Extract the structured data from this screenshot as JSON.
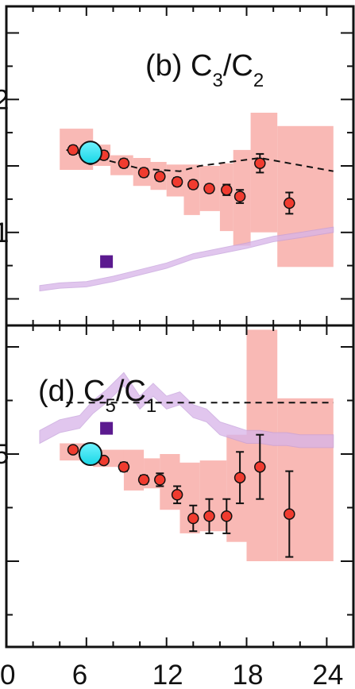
{
  "chart_data": [
    {
      "panel": "(b) C3/C2",
      "type": "scatter",
      "title": {
        "prefix": "(b) C",
        "sub1": "3",
        "slash": "/C",
        "sub2": "2"
      },
      "xlim": [
        0,
        26
      ],
      "ylim": [
        0.3,
        2.7
      ],
      "ytick_labels_visible": [
        {
          "value": 2,
          "label": "2"
        },
        {
          "value": 1,
          "label": "1"
        }
      ],
      "grid": false,
      "series": [
        {
          "kind": "red_points_with_errors",
          "x": [
            5,
            6.3,
            7.3,
            8.8,
            10.3,
            11.5,
            12.8,
            14.0,
            15.2,
            16.5,
            17.5,
            19.0,
            21.2
          ],
          "y": [
            1.62,
            1.55,
            1.58,
            1.52,
            1.45,
            1.42,
            1.38,
            1.36,
            1.33,
            1.32,
            1.27,
            1.52,
            1.22
          ],
          "yerr": [
            0.03,
            0.03,
            0.03,
            0.03,
            0.03,
            0.03,
            0.03,
            0.03,
            0.03,
            0.04,
            0.05,
            0.07,
            0.08
          ]
        },
        {
          "kind": "cyan_circle",
          "x": 6.3,
          "y": 1.6
        },
        {
          "kind": "purple_square",
          "x": 7.5,
          "y": 0.78
        },
        {
          "kind": "dashed_line",
          "x": [
            4.5,
            10,
            13,
            14.5,
            19,
            24.5
          ],
          "y": [
            1.62,
            1.48,
            1.46,
            1.5,
            1.56,
            1.46
          ]
        },
        {
          "kind": "purple_band",
          "x": [
            2.5,
            4,
            6,
            8,
            10,
            12,
            14,
            16,
            18,
            20,
            22,
            24.5
          ],
          "y": [
            0.58,
            0.6,
            0.61,
            0.65,
            0.7,
            0.75,
            0.82,
            0.86,
            0.9,
            0.95,
            0.98,
            1.02
          ],
          "half_width": 0.02
        }
      ],
      "red_bands": [
        {
          "x0": 4.0,
          "x1": 6.5,
          "y0": 1.47,
          "y1": 1.78
        },
        {
          "x0": 6.5,
          "x1": 7.8,
          "y0": 1.5,
          "y1": 1.66
        },
        {
          "x0": 7.8,
          "x1": 9.5,
          "y0": 1.43,
          "y1": 1.58
        },
        {
          "x0": 9.5,
          "x1": 10.8,
          "y0": 1.35,
          "y1": 1.56
        },
        {
          "x0": 10.8,
          "x1": 12.0,
          "y0": 1.32,
          "y1": 1.53
        },
        {
          "x0": 12.0,
          "x1": 13.3,
          "y0": 1.27,
          "y1": 1.51
        },
        {
          "x0": 13.3,
          "x1": 14.5,
          "y0": 1.13,
          "y1": 1.51
        },
        {
          "x0": 14.5,
          "x1": 16.0,
          "y0": 1.16,
          "y1": 1.5
        },
        {
          "x0": 16.0,
          "x1": 17.0,
          "y0": 1.01,
          "y1": 1.52
        },
        {
          "x0": 17.0,
          "x1": 18.3,
          "y0": 0.9,
          "y1": 1.62
        },
        {
          "x0": 18.3,
          "x1": 20.3,
          "y0": 1.0,
          "y1": 1.9
        },
        {
          "x0": 20.3,
          "x1": 24.5,
          "y0": 0.74,
          "y1": 1.8
        }
      ]
    },
    {
      "panel": "(d) C5/C1",
      "type": "scatter",
      "title": {
        "prefix": "(d) C",
        "sub1": "5",
        "slash": "/C",
        "sub2": "1"
      },
      "xlim": [
        0,
        26
      ],
      "ylim": [
        -0.4,
        1.1
      ],
      "ytick_labels_visible": [
        {
          "value": 0.5,
          "label": "5"
        }
      ],
      "xtick_labels": [
        "0",
        "6",
        "12",
        "18",
        "24"
      ],
      "grid": false,
      "series": [
        {
          "kind": "red_points_with_errors",
          "x": [
            5,
            6.3,
            7.3,
            8.8,
            10.3,
            11.5,
            12.8,
            14.0,
            15.2,
            16.5,
            17.5,
            19.0,
            21.2
          ],
          "y": [
            0.52,
            0.5,
            0.47,
            0.44,
            0.38,
            0.38,
            0.31,
            0.2,
            0.21,
            0.21,
            0.39,
            0.44,
            0.22
          ],
          "yerr": [
            0.01,
            0.01,
            0.01,
            0.02,
            0.02,
            0.03,
            0.04,
            0.06,
            0.08,
            0.08,
            0.12,
            0.15,
            0.2
          ]
        },
        {
          "kind": "cyan_circle",
          "x": 6.3,
          "y": 0.5
        },
        {
          "kind": "purple_square",
          "x": 7.5,
          "y": 0.62
        },
        {
          "kind": "dashed_line",
          "x": [
            4.5,
            24.5
          ],
          "y": [
            0.74,
            0.74
          ]
        },
        {
          "kind": "purple_band",
          "x": [
            2.5,
            4,
            5.5,
            6.5,
            7.5,
            8.8,
            10,
            11,
            12,
            13,
            14,
            15,
            16,
            17,
            18,
            19,
            20,
            21,
            22,
            24.5
          ],
          "y": [
            0.58,
            0.63,
            0.65,
            0.72,
            0.77,
            0.85,
            0.74,
            0.8,
            0.74,
            0.76,
            0.7,
            0.68,
            0.62,
            0.6,
            0.58,
            0.58,
            0.57,
            0.57,
            0.56,
            0.56
          ],
          "half_width": 0.03
        }
      ],
      "red_bands": [
        {
          "x0": 4.0,
          "x1": 6.5,
          "y0": 0.47,
          "y1": 0.55
        },
        {
          "x0": 6.5,
          "x1": 8.8,
          "y0": 0.44,
          "y1": 0.52
        },
        {
          "x0": 8.8,
          "x1": 10.3,
          "y0": 0.33,
          "y1": 0.52
        },
        {
          "x0": 10.3,
          "x1": 11.5,
          "y0": 0.34,
          "y1": 0.48
        },
        {
          "x0": 11.5,
          "x1": 13.0,
          "y0": 0.24,
          "y1": 0.5
        },
        {
          "x0": 13.0,
          "x1": 14.5,
          "y0": 0.13,
          "y1": 0.46
        },
        {
          "x0": 14.5,
          "x1": 16.5,
          "y0": 0.14,
          "y1": 0.47
        },
        {
          "x0": 16.5,
          "x1": 18.0,
          "y0": 0.09,
          "y1": 0.59
        },
        {
          "x0": 18.0,
          "x1": 20.3,
          "y0": 0.0,
          "y1": 1.08
        },
        {
          "x0": 20.3,
          "x1": 24.5,
          "y0": 0.0,
          "y1": 0.76
        }
      ]
    }
  ]
}
